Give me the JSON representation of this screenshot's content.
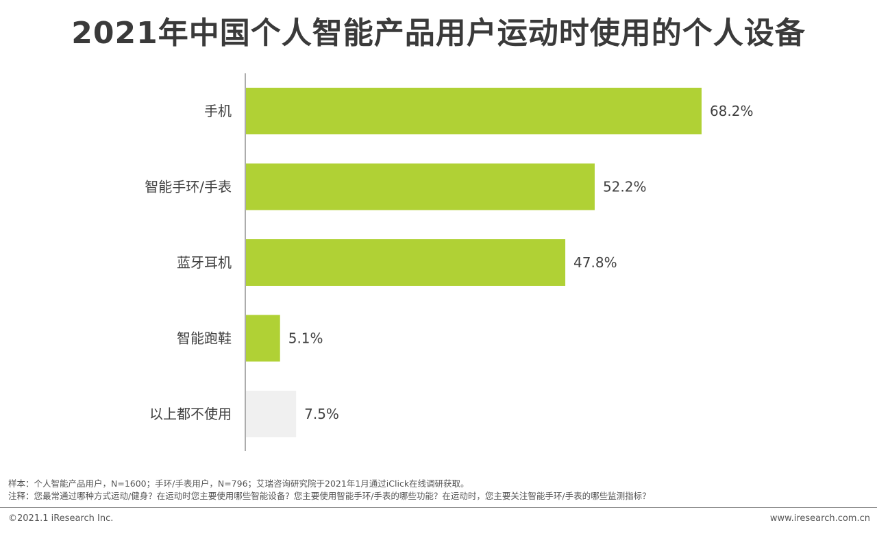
{
  "title": "2021年中国个人智能产品用户运动时使用的个人设备",
  "colors": {
    "bar": "#b0d135",
    "bar_none": "#f0f0f0",
    "axis": "#595959",
    "text": "#404040"
  },
  "chart_data": {
    "type": "bar",
    "orientation": "horizontal",
    "categories": [
      "手机",
      "智能手环/手表",
      "蓝牙耳机",
      "智能跑鞋",
      "以上都不使用"
    ],
    "values": [
      68.2,
      52.2,
      47.8,
      5.1,
      7.5
    ],
    "value_labels": [
      "68.2%",
      "52.2%",
      "47.8%",
      "5.1%",
      "7.5%"
    ],
    "unit": "%",
    "xlim": [
      0,
      100
    ],
    "grid": false,
    "legend": "none"
  },
  "notes": {
    "sample": "样本：个人智能产品用户，N=1600；手环/手表用户，N=796；艾瑞咨询研究院于2021年1月通过iClick在线调研获取。",
    "remark": "注释：您最常通过哪种方式运动/健身？在运动时您主要使用哪些智能设备？您主要使用智能手环/手表的哪些功能？在运动时，您主要关注智能手环/手表的哪些监测指标？"
  },
  "footer": {
    "copyright": "©2021.1 iResearch Inc.",
    "website": "www.iresearch.com.cn"
  }
}
